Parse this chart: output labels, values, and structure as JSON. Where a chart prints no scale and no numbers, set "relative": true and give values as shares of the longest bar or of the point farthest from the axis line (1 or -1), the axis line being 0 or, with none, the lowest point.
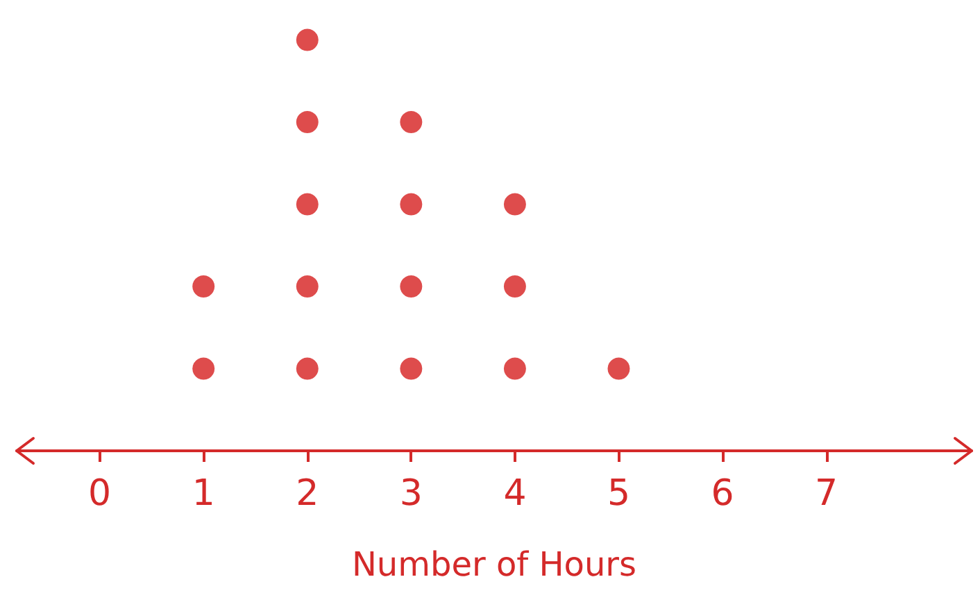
{
  "chart_data": {
    "type": "scatter",
    "relative": true,
    "xlabel": "Number of Hours",
    "x": [
      1,
      1,
      2,
      2,
      2,
      2,
      2,
      3,
      3,
      3,
      3,
      4,
      4,
      4,
      5
    ],
    "values": [
      0.2,
      0.4,
      0.2,
      0.4,
      0.6,
      0.8,
      1.0,
      0.2,
      0.4,
      0.6,
      0.8,
      0.2,
      0.4,
      0.6,
      0.2
    ],
    "color": "#d61f1f",
    "marker": "circle",
    "xlim": [
      -0.8,
      8.4
    ],
    "xticks": [
      0,
      1,
      2,
      3,
      4,
      5,
      6,
      7
    ],
    "grid": false
  }
}
